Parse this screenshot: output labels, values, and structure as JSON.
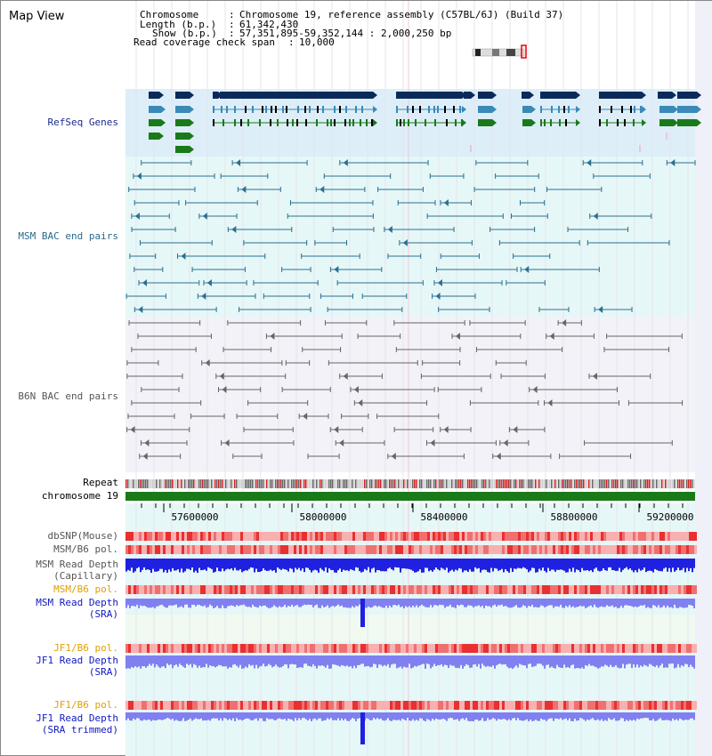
{
  "view_title": "Map View",
  "info": {
    "chromosome_key": "Chromosome",
    "chromosome_val": "Chromosome 19, reference assembly (C57BL/6J) (Build 37)",
    "length_key": "Length (b.p.)",
    "length_val": "61,342,430",
    "show_key": "Show (b.p.)",
    "show_val": "57,351,895-59,352,144 : 2,000,250 bp",
    "coverage_key": "Read coverage check span",
    "coverage_val": "10,000"
  },
  "tracks": {
    "refseq": "RefSeq Genes",
    "msm_bac": "MSM BAC end pairs",
    "b6n_bac": "B6N BAC end pairs",
    "repeat": "Repeat",
    "chromosome": "chromosome 19",
    "dbsnp": "dbSNP(Mouse)",
    "msm_b6_pol_1": "MSM/B6 pol.",
    "msm_depth_cap_1": "MSM Read Depth",
    "msm_depth_cap_2": "(Capillary)",
    "msm_b6_pol_2": "MSM/B6 pol.",
    "msm_depth_sra_1": "MSM Read Depth",
    "msm_depth_sra_2": "(SRA)",
    "jf1_b6_pol_1": "JF1/B6 pol.",
    "jf1_depth_sra_1": "JF1 Read Depth",
    "jf1_depth_sra_2": "(SRA)",
    "jf1_b6_pol_2": "JF1/B6 pol.",
    "jf1_depth_trim_1": "JF1 Read Depth",
    "jf1_depth_trim_2": "(SRA trimmed)"
  },
  "axis": {
    "ticks": [
      "57600000",
      "58000000",
      "58400000",
      "58800000",
      "59200000"
    ]
  },
  "colors": {
    "refseq_bg": "#ddeef8",
    "msm_bg": "#e6f7f7",
    "b6n_bg": "#f2f2f8",
    "lower_bg": "#e6f7f7",
    "navy_gene": "#0a2a5a",
    "blue_gene": "#3a8ab8",
    "green_gene": "#1a7a1a",
    "teal_bac": "#2a7090",
    "gray_bac": "#666666",
    "chrom_bar": "#1a7a1a",
    "depth_dark": "#2020e0",
    "depth_light": "#8080f0",
    "pol_red": "#f04040"
  }
}
